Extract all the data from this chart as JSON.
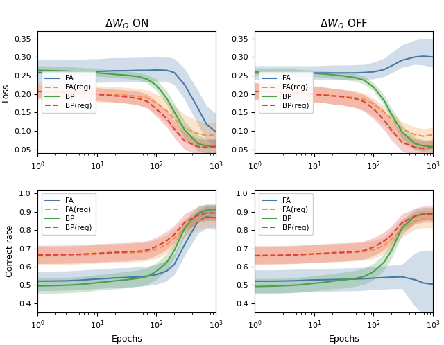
{
  "title_left": "$\\Delta W_O$ ON",
  "title_right": "$\\Delta W_O$ OFF",
  "xlabel": "Epochs",
  "ylabel_top": "Loss",
  "ylabel_bottom": "Correct rate",
  "colors": {
    "FA": "#4878a8",
    "FA_reg": "#f5913e",
    "BP": "#4aa04a",
    "BP_reg": "#d94040"
  },
  "alpha_fill": 0.25,
  "x_log": [
    1,
    2,
    3,
    4,
    5,
    6,
    8,
    10,
    15,
    20,
    30,
    50,
    70,
    100,
    150,
    200,
    300,
    500,
    700,
    1000
  ],
  "on_loss": {
    "FA_mean": [
      0.258,
      0.258,
      0.258,
      0.259,
      0.259,
      0.26,
      0.261,
      0.261,
      0.262,
      0.263,
      0.263,
      0.264,
      0.264,
      0.265,
      0.264,
      0.258,
      0.225,
      0.162,
      0.118,
      0.098
    ],
    "FA_lo": [
      0.228,
      0.228,
      0.228,
      0.229,
      0.229,
      0.23,
      0.231,
      0.231,
      0.232,
      0.233,
      0.233,
      0.234,
      0.234,
      0.235,
      0.234,
      0.225,
      0.185,
      0.118,
      0.075,
      0.058
    ],
    "FA_hi": [
      0.292,
      0.292,
      0.292,
      0.293,
      0.293,
      0.294,
      0.295,
      0.295,
      0.297,
      0.298,
      0.298,
      0.299,
      0.299,
      0.302,
      0.3,
      0.296,
      0.268,
      0.21,
      0.168,
      0.148
    ],
    "FAreg_mean": [
      0.207,
      0.206,
      0.205,
      0.204,
      0.204,
      0.203,
      0.201,
      0.2,
      0.199,
      0.198,
      0.197,
      0.194,
      0.19,
      0.176,
      0.155,
      0.133,
      0.108,
      0.093,
      0.088,
      0.09
    ],
    "FAreg_lo": [
      0.185,
      0.184,
      0.184,
      0.183,
      0.182,
      0.181,
      0.18,
      0.179,
      0.177,
      0.176,
      0.175,
      0.17,
      0.163,
      0.146,
      0.122,
      0.098,
      0.072,
      0.057,
      0.053,
      0.055
    ],
    "FAreg_hi": [
      0.23,
      0.229,
      0.228,
      0.227,
      0.226,
      0.225,
      0.223,
      0.222,
      0.221,
      0.22,
      0.218,
      0.215,
      0.21,
      0.2,
      0.185,
      0.168,
      0.144,
      0.128,
      0.122,
      0.124
    ],
    "BP_mean": [
      0.264,
      0.263,
      0.262,
      0.261,
      0.26,
      0.259,
      0.258,
      0.257,
      0.255,
      0.253,
      0.251,
      0.247,
      0.24,
      0.224,
      0.188,
      0.152,
      0.102,
      0.066,
      0.06,
      0.058
    ],
    "BP_lo": [
      0.255,
      0.254,
      0.253,
      0.252,
      0.251,
      0.25,
      0.249,
      0.248,
      0.246,
      0.244,
      0.242,
      0.238,
      0.23,
      0.21,
      0.172,
      0.132,
      0.08,
      0.046,
      0.04,
      0.038
    ],
    "BP_hi": [
      0.276,
      0.275,
      0.274,
      0.273,
      0.272,
      0.271,
      0.27,
      0.269,
      0.266,
      0.264,
      0.262,
      0.258,
      0.252,
      0.24,
      0.208,
      0.175,
      0.126,
      0.088,
      0.08,
      0.078
    ],
    "BPreg_mean": [
      0.207,
      0.206,
      0.205,
      0.204,
      0.203,
      0.202,
      0.2,
      0.199,
      0.197,
      0.195,
      0.193,
      0.188,
      0.18,
      0.16,
      0.133,
      0.106,
      0.073,
      0.058,
      0.056,
      0.058
    ],
    "BPreg_lo": [
      0.19,
      0.189,
      0.188,
      0.187,
      0.186,
      0.185,
      0.183,
      0.182,
      0.18,
      0.178,
      0.176,
      0.17,
      0.162,
      0.14,
      0.11,
      0.082,
      0.05,
      0.036,
      0.034,
      0.036
    ],
    "BPreg_hi": [
      0.225,
      0.224,
      0.223,
      0.222,
      0.221,
      0.22,
      0.218,
      0.217,
      0.215,
      0.213,
      0.211,
      0.207,
      0.2,
      0.18,
      0.155,
      0.128,
      0.096,
      0.08,
      0.076,
      0.078
    ]
  },
  "off_loss": {
    "FA_mean": [
      0.257,
      0.257,
      0.257,
      0.257,
      0.257,
      0.257,
      0.257,
      0.257,
      0.257,
      0.257,
      0.257,
      0.257,
      0.258,
      0.26,
      0.266,
      0.276,
      0.291,
      0.3,
      0.302,
      0.3
    ],
    "FA_lo": [
      0.238,
      0.238,
      0.238,
      0.238,
      0.238,
      0.238,
      0.238,
      0.238,
      0.238,
      0.238,
      0.238,
      0.238,
      0.239,
      0.241,
      0.247,
      0.257,
      0.272,
      0.28,
      0.278,
      0.272
    ],
    "FA_hi": [
      0.276,
      0.276,
      0.276,
      0.276,
      0.276,
      0.276,
      0.276,
      0.276,
      0.277,
      0.278,
      0.278,
      0.279,
      0.28,
      0.286,
      0.296,
      0.312,
      0.332,
      0.346,
      0.35,
      0.348
    ],
    "FAreg_mean": [
      0.207,
      0.206,
      0.206,
      0.205,
      0.204,
      0.203,
      0.201,
      0.2,
      0.198,
      0.196,
      0.194,
      0.19,
      0.186,
      0.173,
      0.152,
      0.132,
      0.106,
      0.09,
      0.086,
      0.09
    ],
    "FAreg_lo": [
      0.185,
      0.185,
      0.184,
      0.183,
      0.182,
      0.181,
      0.18,
      0.179,
      0.176,
      0.173,
      0.17,
      0.163,
      0.156,
      0.14,
      0.116,
      0.093,
      0.066,
      0.05,
      0.046,
      0.052
    ],
    "FAreg_hi": [
      0.23,
      0.229,
      0.228,
      0.227,
      0.226,
      0.225,
      0.223,
      0.222,
      0.219,
      0.216,
      0.213,
      0.208,
      0.202,
      0.188,
      0.168,
      0.15,
      0.126,
      0.11,
      0.106,
      0.11
    ],
    "BP_mean": [
      0.26,
      0.259,
      0.259,
      0.259,
      0.258,
      0.258,
      0.257,
      0.256,
      0.254,
      0.252,
      0.249,
      0.244,
      0.237,
      0.219,
      0.183,
      0.146,
      0.098,
      0.066,
      0.06,
      0.058
    ],
    "BP_lo": [
      0.252,
      0.251,
      0.251,
      0.251,
      0.25,
      0.249,
      0.248,
      0.247,
      0.245,
      0.242,
      0.239,
      0.234,
      0.227,
      0.208,
      0.17,
      0.13,
      0.08,
      0.05,
      0.044,
      0.042
    ],
    "BP_hi": [
      0.269,
      0.268,
      0.268,
      0.268,
      0.267,
      0.266,
      0.265,
      0.264,
      0.262,
      0.26,
      0.258,
      0.254,
      0.248,
      0.23,
      0.198,
      0.163,
      0.116,
      0.083,
      0.076,
      0.074
    ],
    "BPreg_mean": [
      0.207,
      0.207,
      0.206,
      0.205,
      0.204,
      0.203,
      0.201,
      0.199,
      0.197,
      0.195,
      0.193,
      0.187,
      0.179,
      0.16,
      0.13,
      0.103,
      0.07,
      0.056,
      0.053,
      0.056
    ],
    "BPreg_lo": [
      0.186,
      0.186,
      0.185,
      0.184,
      0.183,
      0.182,
      0.18,
      0.178,
      0.176,
      0.173,
      0.17,
      0.163,
      0.153,
      0.133,
      0.103,
      0.076,
      0.046,
      0.033,
      0.03,
      0.033
    ],
    "BPreg_hi": [
      0.23,
      0.229,
      0.228,
      0.227,
      0.226,
      0.225,
      0.223,
      0.221,
      0.218,
      0.215,
      0.212,
      0.205,
      0.198,
      0.18,
      0.156,
      0.128,
      0.096,
      0.078,
      0.074,
      0.078
    ]
  },
  "on_acc": {
    "FA_mean": [
      0.52,
      0.521,
      0.522,
      0.524,
      0.525,
      0.527,
      0.53,
      0.532,
      0.535,
      0.538,
      0.54,
      0.544,
      0.548,
      0.556,
      0.576,
      0.612,
      0.722,
      0.848,
      0.872,
      0.868
    ],
    "FA_lo": [
      0.468,
      0.469,
      0.47,
      0.472,
      0.473,
      0.475,
      0.478,
      0.48,
      0.483,
      0.486,
      0.488,
      0.492,
      0.496,
      0.503,
      0.522,
      0.556,
      0.662,
      0.78,
      0.81,
      0.804
    ],
    "FA_hi": [
      0.574,
      0.575,
      0.576,
      0.578,
      0.58,
      0.582,
      0.584,
      0.586,
      0.589,
      0.592,
      0.594,
      0.598,
      0.602,
      0.612,
      0.634,
      0.67,
      0.782,
      0.91,
      0.936,
      0.93
    ],
    "FAreg_mean": [
      0.659,
      0.66,
      0.661,
      0.662,
      0.664,
      0.665,
      0.667,
      0.668,
      0.671,
      0.673,
      0.675,
      0.678,
      0.682,
      0.695,
      0.722,
      0.756,
      0.812,
      0.85,
      0.864,
      0.864
    ],
    "FAreg_lo": [
      0.61,
      0.611,
      0.612,
      0.613,
      0.615,
      0.616,
      0.617,
      0.618,
      0.62,
      0.622,
      0.624,
      0.628,
      0.632,
      0.644,
      0.672,
      0.706,
      0.764,
      0.802,
      0.816,
      0.816
    ],
    "FAreg_hi": [
      0.71,
      0.71,
      0.711,
      0.712,
      0.714,
      0.715,
      0.718,
      0.719,
      0.721,
      0.723,
      0.726,
      0.729,
      0.733,
      0.748,
      0.773,
      0.808,
      0.862,
      0.9,
      0.914,
      0.914
    ],
    "BP_mean": [
      0.494,
      0.496,
      0.498,
      0.5,
      0.502,
      0.504,
      0.508,
      0.512,
      0.517,
      0.522,
      0.527,
      0.536,
      0.546,
      0.574,
      0.624,
      0.688,
      0.812,
      0.892,
      0.91,
      0.914
    ],
    "BP_lo": [
      0.452,
      0.454,
      0.456,
      0.458,
      0.46,
      0.462,
      0.466,
      0.47,
      0.474,
      0.478,
      0.483,
      0.492,
      0.502,
      0.528,
      0.578,
      0.644,
      0.768,
      0.856,
      0.876,
      0.882
    ],
    "BP_hi": [
      0.538,
      0.54,
      0.541,
      0.543,
      0.545,
      0.547,
      0.551,
      0.555,
      0.56,
      0.566,
      0.572,
      0.581,
      0.592,
      0.62,
      0.67,
      0.732,
      0.854,
      0.93,
      0.944,
      0.948
    ],
    "BPreg_mean": [
      0.664,
      0.665,
      0.666,
      0.667,
      0.668,
      0.669,
      0.671,
      0.673,
      0.676,
      0.678,
      0.68,
      0.684,
      0.69,
      0.71,
      0.742,
      0.776,
      0.842,
      0.882,
      0.894,
      0.894
    ],
    "BPreg_lo": [
      0.616,
      0.617,
      0.618,
      0.619,
      0.62,
      0.621,
      0.623,
      0.625,
      0.627,
      0.629,
      0.631,
      0.636,
      0.642,
      0.661,
      0.694,
      0.73,
      0.797,
      0.84,
      0.852,
      0.852
    ],
    "BPreg_hi": [
      0.716,
      0.717,
      0.718,
      0.719,
      0.72,
      0.721,
      0.723,
      0.725,
      0.727,
      0.729,
      0.731,
      0.735,
      0.741,
      0.761,
      0.793,
      0.826,
      0.889,
      0.929,
      0.939,
      0.939
    ]
  },
  "off_acc": {
    "FA_mean": [
      0.52,
      0.52,
      0.521,
      0.522,
      0.523,
      0.524,
      0.526,
      0.527,
      0.528,
      0.529,
      0.53,
      0.532,
      0.534,
      0.537,
      0.54,
      0.542,
      0.544,
      0.528,
      0.51,
      0.503
    ],
    "FA_lo": [
      0.456,
      0.456,
      0.457,
      0.458,
      0.459,
      0.46,
      0.462,
      0.463,
      0.464,
      0.465,
      0.466,
      0.468,
      0.47,
      0.474,
      0.476,
      0.478,
      0.48,
      0.382,
      0.332,
      0.322
    ],
    "FA_hi": [
      0.582,
      0.582,
      0.583,
      0.584,
      0.585,
      0.586,
      0.587,
      0.588,
      0.589,
      0.59,
      0.592,
      0.594,
      0.596,
      0.6,
      0.604,
      0.607,
      0.612,
      0.674,
      0.69,
      0.684
    ],
    "FAreg_mean": [
      0.659,
      0.66,
      0.661,
      0.662,
      0.663,
      0.665,
      0.667,
      0.668,
      0.67,
      0.672,
      0.674,
      0.678,
      0.682,
      0.692,
      0.716,
      0.75,
      0.81,
      0.85,
      0.86,
      0.86
    ],
    "FAreg_lo": [
      0.612,
      0.613,
      0.614,
      0.615,
      0.616,
      0.618,
      0.62,
      0.621,
      0.623,
      0.625,
      0.627,
      0.631,
      0.635,
      0.644,
      0.667,
      0.7,
      0.762,
      0.803,
      0.813,
      0.813
    ],
    "FAreg_hi": [
      0.71,
      0.71,
      0.711,
      0.712,
      0.713,
      0.715,
      0.717,
      0.719,
      0.721,
      0.723,
      0.725,
      0.729,
      0.733,
      0.743,
      0.763,
      0.8,
      0.86,
      0.9,
      0.91,
      0.91
    ],
    "BP_mean": [
      0.491,
      0.493,
      0.495,
      0.497,
      0.499,
      0.501,
      0.505,
      0.509,
      0.514,
      0.52,
      0.526,
      0.536,
      0.546,
      0.572,
      0.624,
      0.687,
      0.812,
      0.877,
      0.89,
      0.89
    ],
    "BP_lo": [
      0.45,
      0.452,
      0.454,
      0.456,
      0.458,
      0.46,
      0.464,
      0.468,
      0.472,
      0.478,
      0.482,
      0.492,
      0.502,
      0.528,
      0.58,
      0.645,
      0.772,
      0.841,
      0.856,
      0.856
    ],
    "BP_hi": [
      0.534,
      0.535,
      0.536,
      0.538,
      0.54,
      0.542,
      0.546,
      0.55,
      0.556,
      0.562,
      0.568,
      0.579,
      0.591,
      0.617,
      0.669,
      0.73,
      0.85,
      0.914,
      0.924,
      0.924
    ],
    "BPreg_mean": [
      0.661,
      0.662,
      0.663,
      0.664,
      0.665,
      0.666,
      0.668,
      0.67,
      0.673,
      0.676,
      0.678,
      0.682,
      0.688,
      0.708,
      0.739,
      0.773,
      0.84,
      0.877,
      0.887,
      0.887
    ],
    "BPreg_lo": [
      0.614,
      0.615,
      0.616,
      0.617,
      0.618,
      0.619,
      0.621,
      0.623,
      0.625,
      0.628,
      0.63,
      0.635,
      0.641,
      0.66,
      0.691,
      0.726,
      0.793,
      0.833,
      0.843,
      0.843
    ],
    "BPreg_hi": [
      0.714,
      0.714,
      0.715,
      0.716,
      0.717,
      0.718,
      0.72,
      0.722,
      0.725,
      0.728,
      0.73,
      0.734,
      0.74,
      0.758,
      0.789,
      0.823,
      0.887,
      0.921,
      0.931,
      0.931
    ]
  },
  "loss_ylim": [
    0.04,
    0.37
  ],
  "acc_ylim": [
    0.35,
    1.02
  ],
  "loss_yticks": [
    0.05,
    0.1,
    0.15,
    0.2,
    0.25,
    0.3,
    0.35
  ],
  "acc_yticks": [
    0.4,
    0.5,
    0.6,
    0.7,
    0.8,
    0.9,
    1.0
  ],
  "figsize": [
    6.4,
    4.98
  ],
  "dpi": 100
}
